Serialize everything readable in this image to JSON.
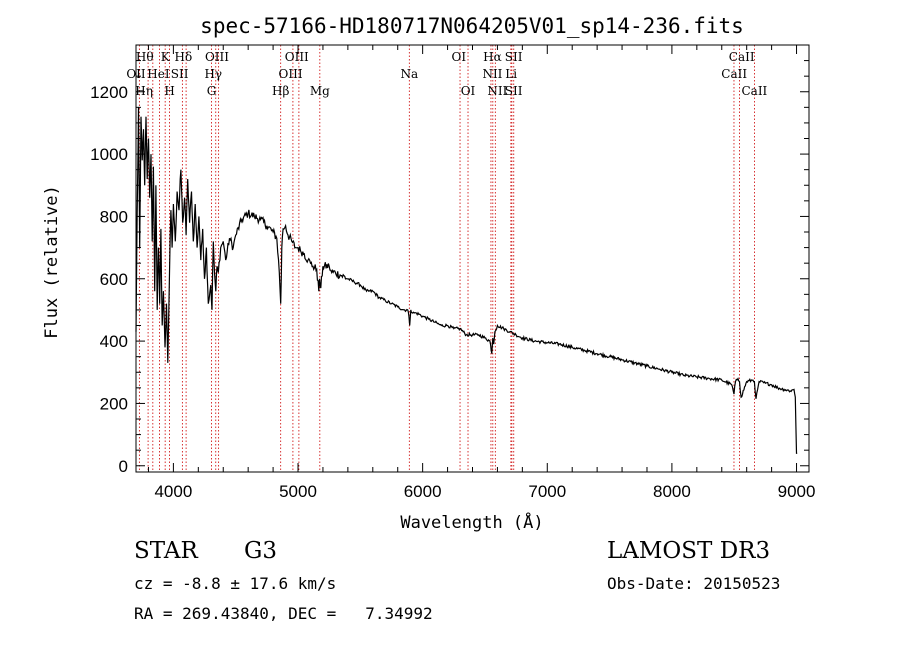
{
  "chart_data": {
    "type": "line",
    "title": "spec-57166-HD180717N064205V01_sp14-236.fits",
    "xlabel": "Wavelength (Å)",
    "ylabel": "Flux (relative)",
    "xlim": [
      3700,
      9100
    ],
    "ylim": [
      -20,
      1350
    ],
    "xticks": [
      4000,
      5000,
      6000,
      7000,
      8000,
      9000
    ],
    "xtick_labels": [
      "4000",
      "5000",
      "6000",
      "7000",
      "8000",
      "9000"
    ],
    "yticks": [
      0,
      200,
      400,
      600,
      800,
      1000,
      1200
    ],
    "ytick_labels": [
      "0",
      "200",
      "400",
      "600",
      "800",
      "1000",
      "1200"
    ],
    "series": [
      {
        "name": "flux",
        "color": "#000000",
        "x": [
          3700,
          3710,
          3720,
          3730,
          3740,
          3750,
          3760,
          3770,
          3780,
          3790,
          3800,
          3810,
          3820,
          3830,
          3840,
          3850,
          3860,
          3870,
          3880,
          3890,
          3900,
          3910,
          3920,
          3933,
          3945,
          3955,
          3968,
          3980,
          3990,
          4000,
          4015,
          4030,
          4045,
          4060,
          4075,
          4090,
          4102,
          4115,
          4130,
          4145,
          4160,
          4175,
          4190,
          4205,
          4220,
          4235,
          4250,
          4265,
          4280,
          4300,
          4310,
          4320,
          4330,
          4340,
          4350,
          4360,
          4380,
          4400,
          4420,
          4450,
          4480,
          4500,
          4550,
          4600,
          4650,
          4700,
          4750,
          4800,
          4830,
          4850,
          4861,
          4870,
          4880,
          4900,
          4920,
          4950,
          4980,
          5000,
          5020,
          5050,
          5080,
          5100,
          5120,
          5150,
          5167,
          5172,
          5183,
          5200,
          5250,
          5270,
          5300,
          5350,
          5400,
          5450,
          5500,
          5550,
          5600,
          5650,
          5700,
          5750,
          5800,
          5850,
          5880,
          5890,
          5896,
          5905,
          5920,
          5950,
          6000,
          6050,
          6100,
          6150,
          6200,
          6250,
          6300,
          6350,
          6400,
          6450,
          6500,
          6540,
          6555,
          6563,
          6570,
          6580,
          6600,
          6650,
          6700,
          6750,
          6800,
          6900,
          7000,
          7100,
          7200,
          7300,
          7400,
          7500,
          7600,
          7700,
          7800,
          7900,
          8000,
          8100,
          8200,
          8300,
          8400,
          8480,
          8498,
          8510,
          8530,
          8542,
          8555,
          8600,
          8650,
          8662,
          8675,
          8700,
          8750,
          8800,
          8850,
          8900,
          8950,
          8980,
          8990,
          9000,
          9005
        ],
        "y": [
          430,
          820,
          1150,
          700,
          1120,
          980,
          1080,
          900,
          1120,
          920,
          1050,
          860,
          1000,
          720,
          960,
          560,
          900,
          500,
          700,
          520,
          760,
          450,
          560,
          380,
          520,
          330,
          600,
          820,
          700,
          840,
          720,
          880,
          820,
          950,
          780,
          860,
          740,
          920,
          780,
          880,
          720,
          840,
          700,
          800,
          660,
          760,
          600,
          700,
          520,
          580,
          500,
          720,
          620,
          560,
          640,
          620,
          700,
          720,
          660,
          730,
          700,
          740,
          790,
          810,
          800,
          790,
          770,
          750,
          730,
          620,
          520,
          700,
          760,
          770,
          740,
          720,
          700,
          700,
          690,
          680,
          660,
          650,
          640,
          630,
          560,
          600,
          570,
          640,
          640,
          620,
          620,
          610,
          600,
          590,
          580,
          560,
          560,
          540,
          530,
          520,
          510,
          500,
          500,
          480,
          450,
          500,
          490,
          490,
          480,
          470,
          460,
          450,
          450,
          440,
          440,
          420,
          420,
          420,
          410,
          400,
          360,
          410,
          390,
          430,
          450,
          440,
          430,
          420,
          410,
          400,
          395,
          390,
          380,
          370,
          360,
          350,
          340,
          330,
          320,
          310,
          300,
          290,
          285,
          280,
          275,
          260,
          230,
          270,
          280,
          270,
          220,
          270,
          275,
          270,
          215,
          270,
          265,
          260,
          250,
          245,
          240,
          245,
          220,
          40,
          40
        ]
      }
    ],
    "lines_red": [
      {
        "label": "Hθ",
        "wl": 3797
      },
      {
        "label": "OII",
        "wl": 3727
      },
      {
        "label": "Hη",
        "wl": 3835
      },
      {
        "label": "HeI",
        "wl": 3889
      },
      {
        "label": "K",
        "wl": 3934
      },
      {
        "label": "SII",
        "wl": 4072
      },
      {
        "label": "H",
        "wl": 3968
      },
      {
        "label": "Hδ",
        "wl": 4102
      },
      {
        "label": "OIII",
        "wl": 4363
      },
      {
        "label": "Hγ",
        "wl": 4340
      },
      {
        "label": "G",
        "wl": 4306
      },
      {
        "label": "Hβ",
        "wl": 4861
      },
      {
        "label": "OIII",
        "wl": 5007
      },
      {
        "label": "OIII",
        "wl": 4959
      },
      {
        "label": "Mg",
        "wl": 5175
      },
      {
        "label": "Na",
        "wl": 5893
      },
      {
        "label": "OI",
        "wl": 6300
      },
      {
        "label": "OI",
        "wl": 6364
      },
      {
        "label": "Hα",
        "wl": 6563
      },
      {
        "label": "NII",
        "wl": 6548
      },
      {
        "label": "NII",
        "wl": 6583
      },
      {
        "label": "SII",
        "wl": 6716
      },
      {
        "label": "Li",
        "wl": 6708
      },
      {
        "label": "SII",
        "wl": 6731
      },
      {
        "label": "CaII",
        "wl": 8542
      },
      {
        "label": "CaII",
        "wl": 8498
      },
      {
        "label": "CaII",
        "wl": 8662
      }
    ],
    "label_rows": [
      [
        "Hθ",
        "K",
        "Hδ",
        "OIII",
        "OIII",
        "OI",
        "Hα",
        "SII",
        "CaII"
      ],
      [
        "OII",
        "HeI",
        "SII",
        "Hγ",
        "OIII",
        "Na",
        "NII",
        "Li",
        "CaII"
      ],
      [
        "Hη",
        "H",
        "G",
        "Hβ",
        "Mg",
        "OI",
        "NII",
        "SII",
        "CaII"
      ]
    ]
  },
  "info": {
    "object_type": "STAR",
    "subclass": "G3",
    "survey": "LAMOST DR3",
    "velocity": "cz = -8.8 ± 17.6 km/s",
    "obs_date": "Obs-Date: 20150523",
    "coords": "RA = 269.43840, DEC =   7.34992"
  }
}
